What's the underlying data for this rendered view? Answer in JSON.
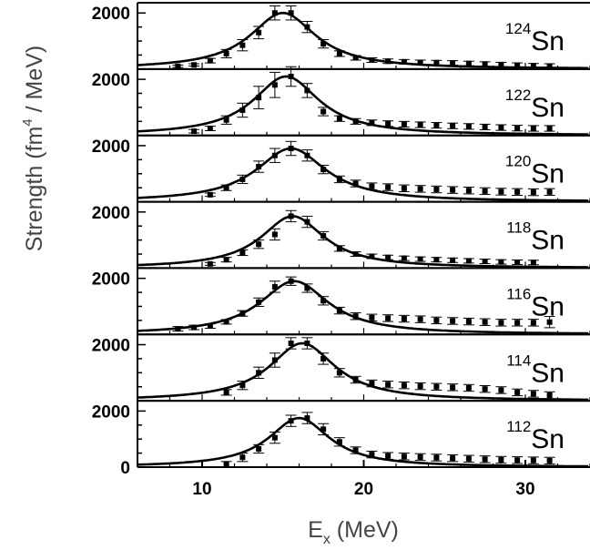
{
  "chart_data": {
    "type": "scatter",
    "xlabel": {
      "main": "E",
      "sub": "x",
      "tail": " (MeV)"
    },
    "ylabel": {
      "prefix": "Strength  (fm",
      "sup": "4",
      "suffix": " / MeV)"
    },
    "xlim": [
      6,
      34
    ],
    "x_ticks": [
      "10",
      "20",
      "30"
    ],
    "x_tick_values": [
      10,
      20,
      30
    ],
    "ylim": [
      0,
      2300
    ],
    "y_tick_label": "2000",
    "y_tick_value": 2000,
    "bottom_zero_label": "0",
    "panels": [
      {
        "isotope": "Sn",
        "mass": "124",
        "fit": {
          "peak": 2000,
          "centroid": 15.0,
          "width": 5.0
        },
        "x": [
          8.5,
          9.5,
          10.5,
          11.5,
          12.5,
          13.5,
          14.5,
          15.5,
          16.5,
          17.5,
          18.5,
          19.5,
          20.5,
          21.5,
          22.5,
          23.5,
          24.5,
          25.5,
          26.5,
          27.5,
          28.5,
          29.5,
          30.5,
          31.5
        ],
        "y": [
          100,
          150,
          300,
          550,
          850,
          1300,
          2000,
          2000,
          1500,
          900,
          550,
          400,
          320,
          280,
          260,
          240,
          230,
          220,
          200,
          180,
          160,
          140,
          120,
          110
        ],
        "err": [
          40,
          40,
          80,
          150,
          200,
          220,
          250,
          250,
          200,
          150,
          100,
          80,
          80,
          80,
          80,
          80,
          80,
          80,
          80,
          80,
          80,
          80,
          80,
          80
        ]
      },
      {
        "isotope": "Sn",
        "mass": "122",
        "fit": {
          "peak": 2100,
          "centroid": 15.2,
          "width": 5.0
        },
        "x": [
          9.5,
          10.5,
          11.5,
          12.5,
          13.5,
          14.5,
          15.5,
          16.5,
          17.5,
          18.5,
          19.5,
          20.5,
          21.5,
          22.5,
          23.5,
          24.5,
          25.5,
          26.5,
          27.5,
          28.5,
          29.5,
          30.5,
          31.5
        ],
        "y": [
          150,
          250,
          550,
          900,
          1350,
          1800,
          2100,
          1600,
          850,
          600,
          500,
          450,
          420,
          400,
          380,
          360,
          340,
          320,
          300,
          280,
          260,
          250,
          250
        ],
        "err": [
          60,
          80,
          150,
          250,
          400,
          450,
          350,
          250,
          150,
          100,
          100,
          100,
          100,
          100,
          100,
          100,
          100,
          100,
          100,
          100,
          100,
          100,
          100
        ]
      },
      {
        "isotope": "Sn",
        "mass": "120",
        "fit": {
          "peak": 1900,
          "centroid": 15.5,
          "width": 5.3
        },
        "x": [
          10.5,
          11.5,
          12.5,
          13.5,
          14.5,
          15.5,
          16.5,
          17.5,
          18.5,
          19.5,
          20.5,
          21.5,
          22.5,
          23.5,
          24.5,
          25.5,
          26.5,
          27.5,
          28.5,
          29.5,
          30.5,
          31.5
        ],
        "y": [
          250,
          500,
          800,
          1250,
          1650,
          1900,
          1650,
          1150,
          800,
          650,
          550,
          520,
          480,
          460,
          440,
          420,
          400,
          380,
          360,
          350,
          340,
          350
        ],
        "err": [
          60,
          100,
          150,
          200,
          250,
          250,
          200,
          150,
          120,
          120,
          120,
          120,
          120,
          120,
          120,
          120,
          120,
          120,
          120,
          120,
          120,
          120
        ]
      },
      {
        "isotope": "Sn",
        "mass": "118",
        "fit": {
          "peak": 1850,
          "centroid": 15.6,
          "width": 4.8
        },
        "x": [
          10.5,
          11.5,
          12.5,
          13.5,
          14.5,
          15.5,
          16.5,
          17.5,
          18.5,
          19.5,
          20.5,
          21.5,
          22.5,
          23.5,
          24.5,
          25.5,
          26.5,
          27.5,
          28.5,
          29.5,
          30.5
        ],
        "y": [
          150,
          300,
          550,
          850,
          1200,
          1850,
          1650,
          1150,
          700,
          500,
          420,
          380,
          350,
          320,
          300,
          280,
          260,
          240,
          220,
          210,
          200
        ],
        "err": [
          50,
          80,
          100,
          150,
          200,
          200,
          200,
          150,
          100,
          80,
          80,
          80,
          80,
          80,
          80,
          80,
          80,
          80,
          80,
          80,
          80
        ]
      },
      {
        "isotope": "Sn",
        "mass": "116",
        "fit": {
          "peak": 1900,
          "centroid": 15.7,
          "width": 5.2
        },
        "x": [
          8.5,
          9.5,
          10.5,
          11.5,
          12.5,
          13.5,
          14.5,
          15.5,
          16.5,
          17.5,
          18.5,
          19.5,
          20.5,
          21.5,
          22.5,
          23.5,
          24.5,
          25.5,
          26.5,
          27.5,
          28.5,
          29.5,
          30.5,
          31.5
        ],
        "y": [
          200,
          250,
          300,
          450,
          750,
          1150,
          1700,
          1900,
          1650,
          1200,
          850,
          650,
          600,
          580,
          560,
          540,
          500,
          480,
          460,
          440,
          420,
          420,
          420,
          440
        ],
        "err": [
          80,
          80,
          80,
          80,
          100,
          150,
          200,
          150,
          150,
          150,
          120,
          120,
          120,
          120,
          120,
          120,
          120,
          120,
          120,
          120,
          120,
          120,
          120,
          200
        ]
      },
      {
        "isotope": "Sn",
        "mass": "114",
        "fit": {
          "peak": 2050,
          "centroid": 16.2,
          "width": 5.0
        },
        "x": [
          11.5,
          12.5,
          13.5,
          14.5,
          15.5,
          16.5,
          17.5,
          18.5,
          19.5,
          20.5,
          21.5,
          22.5,
          23.5,
          24.5,
          25.5,
          26.5,
          27.5,
          28.5,
          29.5,
          30.5,
          31.5
        ],
        "y": [
          300,
          550,
          1000,
          1450,
          2050,
          2050,
          1500,
          1000,
          750,
          620,
          580,
          550,
          520,
          500,
          480,
          460,
          420,
          380,
          300,
          250,
          200
        ],
        "err": [
          100,
          150,
          200,
          250,
          200,
          200,
          200,
          150,
          120,
          120,
          120,
          120,
          120,
          120,
          120,
          120,
          120,
          120,
          120,
          120,
          120
        ]
      },
      {
        "isotope": "Sn",
        "mass": "112",
        "fit": {
          "peak": 1750,
          "centroid": 16.0,
          "width": 4.6
        },
        "x": [
          11.5,
          12.5,
          13.5,
          14.5,
          15.5,
          16.5,
          17.5,
          18.5,
          19.5,
          20.5,
          21.5,
          22.5,
          23.5,
          24.5,
          25.5,
          26.5,
          27.5,
          28.5,
          29.5,
          30.5,
          31.5
        ],
        "y": [
          100,
          350,
          650,
          1050,
          1650,
          1750,
          1350,
          900,
          600,
          450,
          400,
          380,
          360,
          340,
          320,
          300,
          280,
          260,
          250,
          240,
          230
        ],
        "err": [
          100,
          150,
          150,
          200,
          200,
          200,
          200,
          150,
          120,
          120,
          120,
          120,
          120,
          120,
          120,
          120,
          120,
          120,
          120,
          120,
          120
        ]
      }
    ]
  }
}
